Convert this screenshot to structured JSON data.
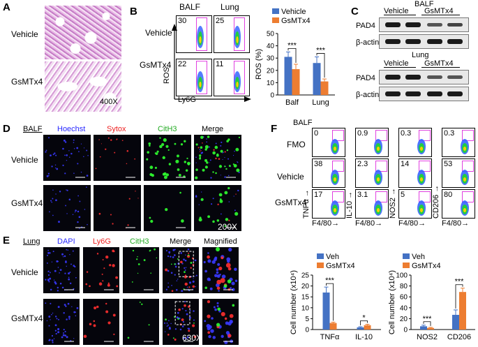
{
  "panels": {
    "A": "A",
    "B": "B",
    "C": "C",
    "D": "D",
    "E": "E",
    "F": "F"
  },
  "panelA": {
    "rows": [
      "Vehicle",
      "GsMTx4"
    ],
    "magnification": "400X"
  },
  "panelB": {
    "columns": [
      "BALF",
      "Lung"
    ],
    "rows": [
      "Vehicle",
      "GsMTx4"
    ],
    "values": {
      "vehicle_balf": "30",
      "vehicle_lung": "25",
      "gsmtx4_balf": "22",
      "gsmtx4_lung": "11"
    },
    "yaxis": "ROS",
    "xaxis": "Ly6G"
  },
  "panelC": {
    "balf_title": "BALF",
    "lung_title": "Lung",
    "groups": [
      "Vehicle",
      "GsMTx4"
    ],
    "proteins": [
      "PAD4",
      "β-actin"
    ]
  },
  "panelD": {
    "sample": "BALF",
    "channels": [
      "Hoechst",
      "Sytox",
      "CitH3",
      "Merge"
    ],
    "channel_colors": [
      "#2a2aff",
      "#ee2222",
      "#22aa22",
      "#000000"
    ],
    "rows": [
      "Vehicle",
      "GsMTx4"
    ],
    "magnification": "200X"
  },
  "panelE": {
    "sample": "Lung",
    "channels": [
      "DAPI",
      "Ly6G",
      "CitH3",
      "Merge",
      "Magnified"
    ],
    "channel_colors": [
      "#2a2aff",
      "#ee2222",
      "#22aa22",
      "#000000",
      "#000000"
    ],
    "rows": [
      "Vehicle",
      "GsMTx4"
    ],
    "magnification": "630X"
  },
  "panelF": {
    "sample": "BALF",
    "rows": [
      "FMO",
      "Vehicle",
      "GsMTx4"
    ],
    "ylabels": [
      "TNFα",
      "IL-10",
      "NOS2",
      "CD206"
    ],
    "xlabel": "F4/80",
    "values": [
      [
        "0",
        "38",
        "17"
      ],
      [
        "0.9",
        "2.3",
        "3.1"
      ],
      [
        "0.3",
        "14",
        "5"
      ],
      [
        "0.3",
        "53",
        "80"
      ]
    ]
  },
  "colors": {
    "vehicle": "#4472c4",
    "gsmtx4": "#ed7d31",
    "gate": "#e040e0"
  },
  "chart_data": [
    {
      "type": "bar",
      "categories": [
        "Balf",
        "Lung"
      ],
      "series": [
        {
          "name": "Vehicle",
          "values": [
            31,
            26
          ],
          "errors": [
            4,
            5
          ]
        },
        {
          "name": "GsMTx4",
          "values": [
            21,
            11
          ],
          "errors": [
            4,
            2
          ]
        }
      ],
      "ylabel": "ROS (%)",
      "ylim": [
        0,
        50
      ],
      "yticks": [
        0,
        10,
        20,
        30,
        40,
        50
      ],
      "significance": [
        "***",
        "***"
      ],
      "legend": "top-right"
    },
    {
      "type": "bar",
      "categories": [
        "TNFα",
        "IL-10"
      ],
      "series": [
        {
          "name": "Veh",
          "values": [
            17,
            1
          ],
          "errors": [
            2.5,
            0.3
          ]
        },
        {
          "name": "GsMTx4",
          "values": [
            3,
            2
          ],
          "errors": [
            0.4,
            0.4
          ]
        }
      ],
      "ylabel": "Cell number (x10⁴)",
      "ylim": [
        0,
        25
      ],
      "yticks": [
        0,
        5,
        10,
        15,
        20,
        25
      ],
      "significance": [
        "***",
        "*"
      ],
      "legend": "top"
    },
    {
      "type": "bar",
      "categories": [
        "NOS2",
        "CD206"
      ],
      "series": [
        {
          "name": "Veh",
          "values": [
            6,
            27
          ],
          "errors": [
            2,
            9
          ]
        },
        {
          "name": "GsMTx4",
          "values": [
            3,
            69
          ],
          "errors": [
            1,
            7
          ]
        }
      ],
      "ylabel": "Cell number (x10⁴)",
      "ylim": [
        0,
        100
      ],
      "yticks": [
        0,
        20,
        40,
        60,
        80,
        100
      ],
      "significance": [
        "***",
        "***"
      ],
      "legend": "top"
    }
  ]
}
